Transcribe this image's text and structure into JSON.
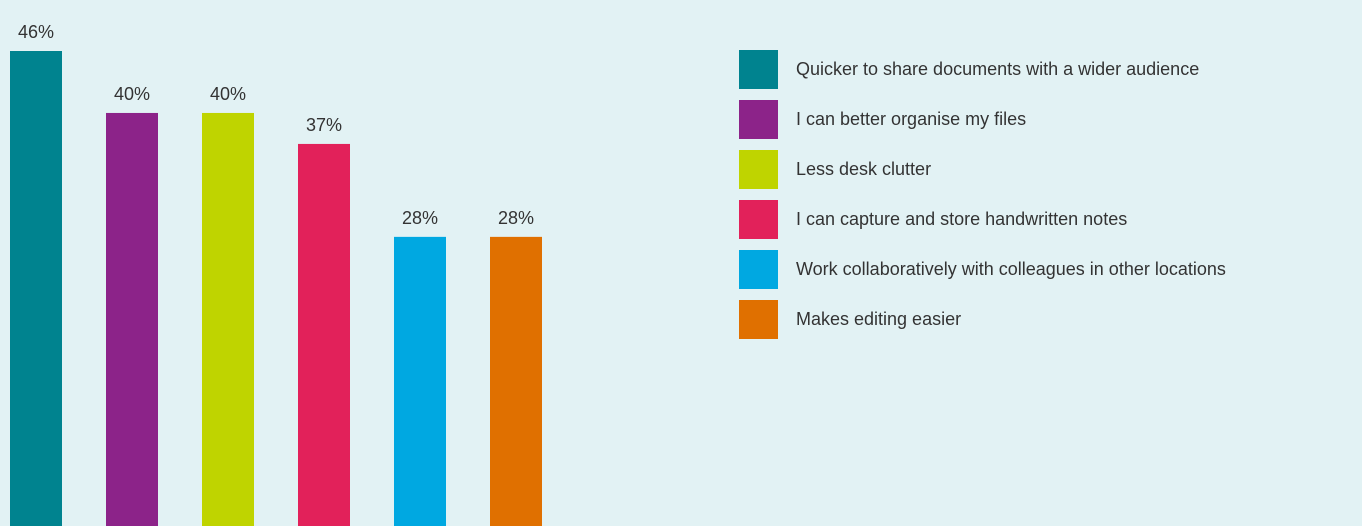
{
  "chart_data": {
    "type": "bar",
    "title": "",
    "xlabel": "",
    "ylabel": "",
    "ylim": [
      0,
      50
    ],
    "value_suffix": "%",
    "data_labels": [
      "46%",
      "40%",
      "40%",
      "37%",
      "28%",
      "28%"
    ],
    "categories": [
      "Quicker to share documents with a wider audience",
      "I can better organise my files",
      "Less desk clutter",
      "I can capture and store handwritten notes",
      "Work collaboratively with colleagues in other locations",
      "Makes editing easier"
    ],
    "values": [
      46,
      40,
      40,
      37,
      28,
      28
    ],
    "colors": [
      "#00838f",
      "#8c2389",
      "#bfd400",
      "#e2215a",
      "#00a8e1",
      "#e07000"
    ],
    "legend_position": "right",
    "grid": false
  }
}
